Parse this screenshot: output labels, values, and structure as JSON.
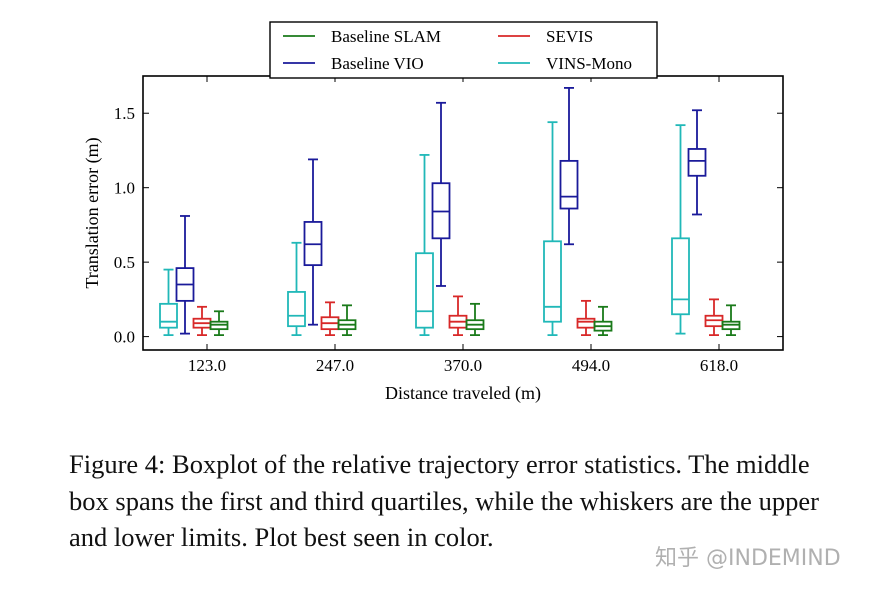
{
  "chart_data": {
    "type": "box",
    "xlabel": "Distance traveled (m)",
    "ylabel": "Translation error (m)",
    "categories": [
      "123.0",
      "247.0",
      "370.0",
      "494.0",
      "618.0"
    ],
    "ylim": [
      -0.09,
      1.75
    ],
    "yticks": [
      0.0,
      0.5,
      1.0,
      1.5
    ],
    "ytick_labels": [
      "0.0",
      "0.5",
      "1.0",
      "1.5"
    ],
    "grid": false,
    "legend_placement": "top-center",
    "legend": [
      "Baseline SLAM",
      "SEVIS",
      "Baseline VIO",
      "VINS-Mono"
    ],
    "series": [
      {
        "name": "VINS-Mono",
        "color": "#20b8b8",
        "boxes": [
          [
            0.01,
            0.06,
            0.1,
            0.22,
            0.45
          ],
          [
            0.01,
            0.07,
            0.14,
            0.3,
            0.63
          ],
          [
            0.01,
            0.06,
            0.17,
            0.56,
            1.22
          ],
          [
            0.01,
            0.1,
            0.2,
            0.64,
            1.44
          ],
          [
            0.02,
            0.15,
            0.25,
            0.66,
            1.42
          ]
        ]
      },
      {
        "name": "Baseline VIO",
        "color": "#1a1a9a",
        "boxes": [
          [
            0.02,
            0.24,
            0.35,
            0.46,
            0.81
          ],
          [
            0.08,
            0.48,
            0.62,
            0.77,
            1.19
          ],
          [
            0.34,
            0.66,
            0.84,
            1.03,
            1.57
          ],
          [
            0.62,
            0.86,
            0.94,
            1.18,
            1.67
          ],
          [
            0.82,
            1.08,
            1.18,
            1.26,
            1.52
          ]
        ]
      },
      {
        "name": "SEVIS",
        "color": "#d82828",
        "boxes": [
          [
            0.01,
            0.06,
            0.09,
            0.12,
            0.2
          ],
          [
            0.01,
            0.05,
            0.09,
            0.13,
            0.23
          ],
          [
            0.01,
            0.06,
            0.1,
            0.14,
            0.27
          ],
          [
            0.01,
            0.06,
            0.1,
            0.12,
            0.24
          ],
          [
            0.01,
            0.07,
            0.11,
            0.14,
            0.25
          ]
        ]
      },
      {
        "name": "Baseline SLAM",
        "color": "#1a7a1a",
        "boxes": [
          [
            0.01,
            0.05,
            0.08,
            0.1,
            0.17
          ],
          [
            0.01,
            0.05,
            0.08,
            0.11,
            0.21
          ],
          [
            0.01,
            0.05,
            0.08,
            0.11,
            0.22
          ],
          [
            0.01,
            0.04,
            0.07,
            0.1,
            0.2
          ],
          [
            0.01,
            0.05,
            0.08,
            0.1,
            0.21
          ]
        ]
      }
    ]
  },
  "caption": "Figure 4: Boxplot of the relative trajectory error statistics. The middle box spans the first and third quartiles, while the whiskers are the upper and lower limits. Plot best seen in color.",
  "watermark": "知乎 @INDEMIND"
}
